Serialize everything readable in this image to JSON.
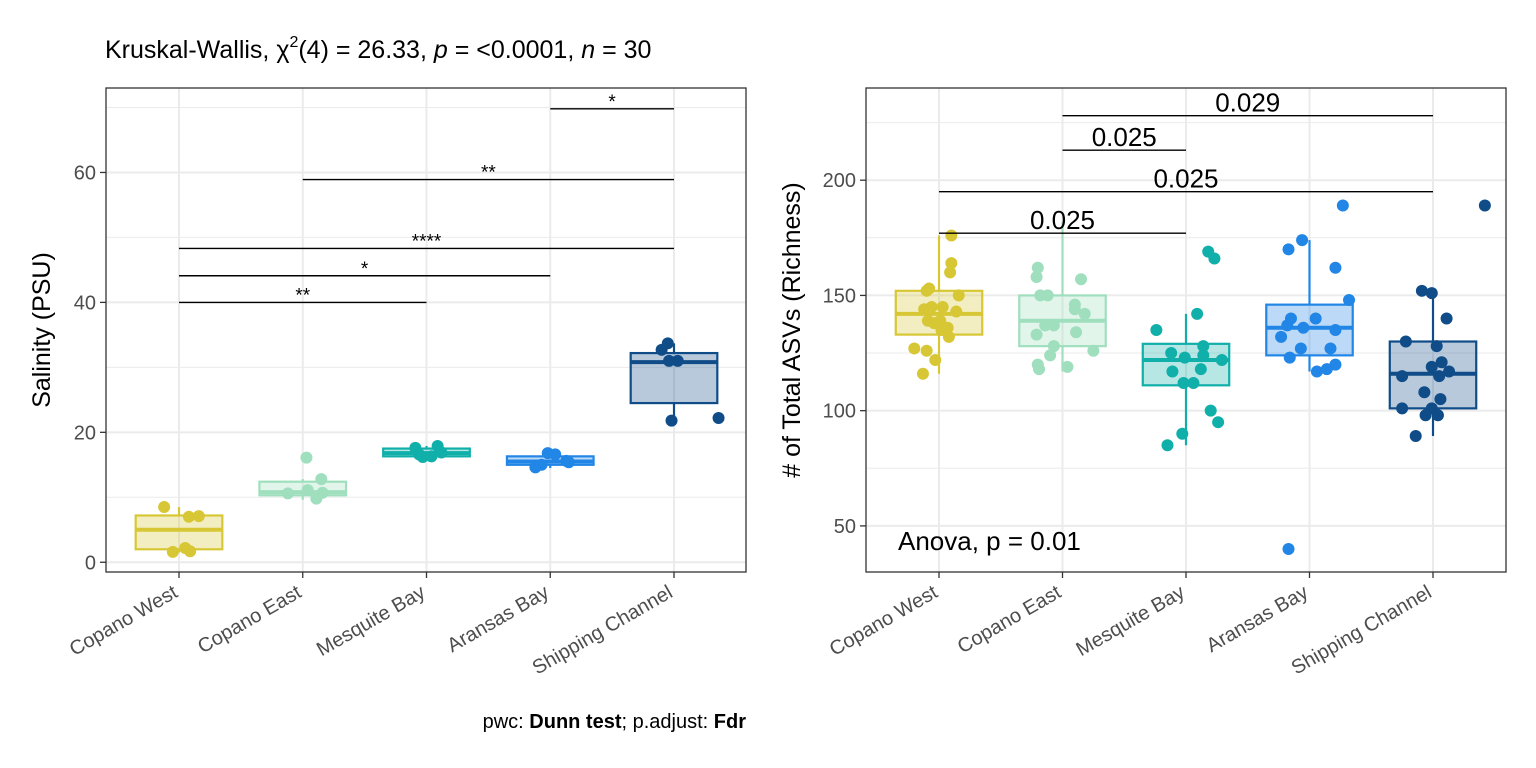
{
  "groups": [
    "Copano West",
    "Copano East",
    "Mesquite Bay",
    "Aransas Bay",
    "Shipping Channel"
  ],
  "colors": {
    "Copano West": "#D7C735",
    "Copano East": "#9FDFBE",
    "Mesquite Bay": "#11AFA9",
    "Aransas Bay": "#2186E6",
    "Shipping Channel": "#0F4C88"
  },
  "chart_data": [
    {
      "type": "box",
      "title_parts": {
        "prefix": "Kruskal-Wallis, ",
        "chi": "χ",
        "sup": "2",
        "df": "(4) = 26.33, ",
        "p_sym": "p",
        "p_val": " = <0.0001, ",
        "n_sym": "n",
        "n_val": " = 30"
      },
      "xlabel": "",
      "ylabel": "Salinity (PSU)",
      "ylim": [
        -1.5,
        73
      ],
      "yticks": [
        0,
        20,
        40,
        60
      ],
      "ytick_labels": [
        "0",
        "20",
        "40",
        "60"
      ],
      "grid": true,
      "caption_parts": {
        "a": "pwc: ",
        "b": "Dunn test",
        "c": "; p.adjust: ",
        "d": "Fdr"
      },
      "boxes": [
        {
          "group": "Copano West",
          "q1": 2.0,
          "median": 5.0,
          "q3": 7.2,
          "whisker_low": 1.5,
          "whisker_high": 8.5
        },
        {
          "group": "Copano East",
          "q1": 10.3,
          "median": 10.8,
          "q3": 12.4,
          "whisker_low": 9.6,
          "whisker_high": 12.8
        },
        {
          "group": "Mesquite Bay",
          "q1": 16.3,
          "median": 16.8,
          "q3": 17.5,
          "whisker_low": 16.2,
          "whisker_high": 17.9
        },
        {
          "group": "Aransas Bay",
          "q1": 15.0,
          "median": 15.5,
          "q3": 16.3,
          "whisker_low": 14.5,
          "whisker_high": 17.0
        },
        {
          "group": "Shipping Channel",
          "q1": 24.5,
          "median": 30.8,
          "q3": 32.2,
          "whisker_low": 21.8,
          "whisker_high": 33.7
        }
      ],
      "points": [
        {
          "group": "Copano West",
          "offset": -0.12,
          "y": 8.5
        },
        {
          "group": "Copano West",
          "offset": 0.08,
          "y": 7.0
        },
        {
          "group": "Copano West",
          "offset": 0.16,
          "y": 7.1
        },
        {
          "group": "Copano West",
          "offset": 0.05,
          "y": 2.2
        },
        {
          "group": "Copano West",
          "offset": -0.05,
          "y": 1.6
        },
        {
          "group": "Copano West",
          "offset": 0.09,
          "y": 1.7
        },
        {
          "group": "Copano East",
          "offset": 0.03,
          "y": 16.1
        },
        {
          "group": "Copano East",
          "offset": -0.12,
          "y": 10.6
        },
        {
          "group": "Copano East",
          "offset": 0.15,
          "y": 12.8
        },
        {
          "group": "Copano East",
          "offset": 0.04,
          "y": 11.1
        },
        {
          "group": "Copano East",
          "offset": 0.11,
          "y": 9.8
        },
        {
          "group": "Copano East",
          "offset": 0.16,
          "y": 10.7
        },
        {
          "group": "Mesquite Bay",
          "offset": -0.09,
          "y": 17.6
        },
        {
          "group": "Mesquite Bay",
          "offset": 0.09,
          "y": 17.9
        },
        {
          "group": "Mesquite Bay",
          "offset": 0.04,
          "y": 16.3
        },
        {
          "group": "Mesquite Bay",
          "offset": -0.03,
          "y": 16.2
        },
        {
          "group": "Mesquite Bay",
          "offset": 0.12,
          "y": 16.9
        },
        {
          "group": "Mesquite Bay",
          "offset": -0.06,
          "y": 16.6
        },
        {
          "group": "Aransas Bay",
          "offset": -0.02,
          "y": 16.8
        },
        {
          "group": "Aransas Bay",
          "offset": 0.04,
          "y": 16.6
        },
        {
          "group": "Aransas Bay",
          "offset": -0.12,
          "y": 14.6
        },
        {
          "group": "Aransas Bay",
          "offset": -0.07,
          "y": 15.0
        },
        {
          "group": "Aransas Bay",
          "offset": 0.13,
          "y": 15.6
        },
        {
          "group": "Aransas Bay",
          "offset": 0.15,
          "y": 15.4
        },
        {
          "group": "Shipping Channel",
          "offset": -0.1,
          "y": 32.7
        },
        {
          "group": "Shipping Channel",
          "offset": -0.05,
          "y": 33.7
        },
        {
          "group": "Shipping Channel",
          "offset": 0.03,
          "y": 31.0
        },
        {
          "group": "Shipping Channel",
          "offset": -0.04,
          "y": 31.0
        },
        {
          "group": "Shipping Channel",
          "offset": -0.02,
          "y": 21.8
        },
        {
          "group": "Shipping Channel",
          "offset": 0.36,
          "y": 22.2
        }
      ],
      "brackets": [
        {
          "from": "Aransas Bay",
          "to": "Shipping Channel",
          "y": 69.8,
          "label": "*"
        },
        {
          "from": "Copano East",
          "to": "Shipping Channel",
          "y": 58.9,
          "label": "**"
        },
        {
          "from": "Copano West",
          "to": "Shipping Channel",
          "y": 48.3,
          "label": "****"
        },
        {
          "from": "Copano West",
          "to": "Aransas Bay",
          "y": 44.1,
          "label": "*"
        },
        {
          "from": "Copano West",
          "to": "Mesquite Bay",
          "y": 40.0,
          "label": "**"
        }
      ]
    },
    {
      "type": "box",
      "title": "",
      "xlabel": "",
      "ylabel": "# of Total ASVs (Richness)",
      "ylim": [
        30,
        240
      ],
      "yticks": [
        50,
        100,
        150,
        200
      ],
      "ytick_labels": [
        "50",
        "100",
        "150",
        "200"
      ],
      "grid": true,
      "annotation": "Anova, p = 0.01",
      "boxes": [
        {
          "group": "Copano West",
          "q1": 133,
          "median": 142,
          "q3": 152,
          "whisker_low": 116,
          "whisker_high": 176
        },
        {
          "group": "Copano East",
          "q1": 128,
          "median": 139,
          "q3": 150,
          "whisker_low": 117,
          "whisker_high": 182
        },
        {
          "group": "Mesquite Bay",
          "q1": 111,
          "median": 122,
          "q3": 129,
          "whisker_low": 85,
          "whisker_high": 142
        },
        {
          "group": "Aransas Bay",
          "q1": 124,
          "median": 136,
          "q3": 146,
          "whisker_low": 117,
          "whisker_high": 174
        },
        {
          "group": "Shipping Channel",
          "q1": 101,
          "median": 116,
          "q3": 130,
          "whisker_low": 89,
          "whisker_high": 151
        }
      ],
      "points": [
        {
          "group": "Copano West",
          "offset": 0.1,
          "y": 176
        },
        {
          "group": "Copano West",
          "offset": 0.1,
          "y": 164
        },
        {
          "group": "Copano West",
          "offset": 0.09,
          "y": 160
        },
        {
          "group": "Copano West",
          "offset": -0.1,
          "y": 152
        },
        {
          "group": "Copano West",
          "offset": -0.08,
          "y": 153
        },
        {
          "group": "Copano West",
          "offset": 0.16,
          "y": 150
        },
        {
          "group": "Copano West",
          "offset": -0.06,
          "y": 145
        },
        {
          "group": "Copano West",
          "offset": 0.03,
          "y": 145
        },
        {
          "group": "Copano West",
          "offset": -0.12,
          "y": 144
        },
        {
          "group": "Copano West",
          "offset": 0.14,
          "y": 143
        },
        {
          "group": "Copano West",
          "offset": -0.09,
          "y": 139
        },
        {
          "group": "Copano West",
          "offset": -0.04,
          "y": 138
        },
        {
          "group": "Copano West",
          "offset": 0.01,
          "y": 139
        },
        {
          "group": "Copano West",
          "offset": 0.07,
          "y": 136
        },
        {
          "group": "Copano West",
          "offset": 0.02,
          "y": 135
        },
        {
          "group": "Copano West",
          "offset": 0.08,
          "y": 132
        },
        {
          "group": "Copano West",
          "offset": -0.2,
          "y": 127
        },
        {
          "group": "Copano West",
          "offset": -0.1,
          "y": 126
        },
        {
          "group": "Copano West",
          "offset": -0.03,
          "y": 122
        },
        {
          "group": "Copano West",
          "offset": -0.13,
          "y": 116
        },
        {
          "group": "Copano East",
          "offset": -0.2,
          "y": 162
        },
        {
          "group": "Copano East",
          "offset": -0.21,
          "y": 158
        },
        {
          "group": "Copano East",
          "offset": 0.15,
          "y": 157
        },
        {
          "group": "Copano East",
          "offset": -0.18,
          "y": 150
        },
        {
          "group": "Copano East",
          "offset": -0.12,
          "y": 150
        },
        {
          "group": "Copano East",
          "offset": 0.1,
          "y": 146
        },
        {
          "group": "Copano East",
          "offset": 0.1,
          "y": 144
        },
        {
          "group": "Copano East",
          "offset": 0.18,
          "y": 142
        },
        {
          "group": "Copano East",
          "offset": -0.14,
          "y": 137
        },
        {
          "group": "Copano East",
          "offset": -0.07,
          "y": 137
        },
        {
          "group": "Copano East",
          "offset": 0.11,
          "y": 134
        },
        {
          "group": "Copano East",
          "offset": -0.21,
          "y": 133
        },
        {
          "group": "Copano East",
          "offset": -0.07,
          "y": 128
        },
        {
          "group": "Copano East",
          "offset": 0.25,
          "y": 126
        },
        {
          "group": "Copano East",
          "offset": -0.1,
          "y": 124
        },
        {
          "group": "Copano East",
          "offset": -0.2,
          "y": 120
        },
        {
          "group": "Copano East",
          "offset": -0.19,
          "y": 118
        },
        {
          "group": "Copano East",
          "offset": 0.04,
          "y": 119
        },
        {
          "group": "Mesquite Bay",
          "offset": 0.18,
          "y": 169
        },
        {
          "group": "Mesquite Bay",
          "offset": 0.23,
          "y": 166
        },
        {
          "group": "Mesquite Bay",
          "offset": 0.09,
          "y": 142
        },
        {
          "group": "Mesquite Bay",
          "offset": -0.24,
          "y": 135
        },
        {
          "group": "Mesquite Bay",
          "offset": 0.14,
          "y": 128
        },
        {
          "group": "Mesquite Bay",
          "offset": -0.12,
          "y": 125
        },
        {
          "group": "Mesquite Bay",
          "offset": 0.14,
          "y": 124
        },
        {
          "group": "Mesquite Bay",
          "offset": 0.29,
          "y": 122
        },
        {
          "group": "Mesquite Bay",
          "offset": -0.01,
          "y": 123
        },
        {
          "group": "Mesquite Bay",
          "offset": 0.12,
          "y": 118
        },
        {
          "group": "Mesquite Bay",
          "offset": -0.11,
          "y": 117
        },
        {
          "group": "Mesquite Bay",
          "offset": -0.02,
          "y": 112
        },
        {
          "group": "Mesquite Bay",
          "offset": 0.06,
          "y": 112
        },
        {
          "group": "Mesquite Bay",
          "offset": 0.2,
          "y": 100
        },
        {
          "group": "Mesquite Bay",
          "offset": 0.26,
          "y": 95
        },
        {
          "group": "Mesquite Bay",
          "offset": -0.03,
          "y": 90
        },
        {
          "group": "Mesquite Bay",
          "offset": -0.15,
          "y": 85
        },
        {
          "group": "Aransas Bay",
          "offset": 0.27,
          "y": 189
        },
        {
          "group": "Aransas Bay",
          "offset": -0.06,
          "y": 174
        },
        {
          "group": "Aransas Bay",
          "offset": -0.17,
          "y": 170
        },
        {
          "group": "Aransas Bay",
          "offset": 0.21,
          "y": 162
        },
        {
          "group": "Aransas Bay",
          "offset": 0.32,
          "y": 148
        },
        {
          "group": "Aransas Bay",
          "offset": -0.15,
          "y": 140
        },
        {
          "group": "Aransas Bay",
          "offset": 0.05,
          "y": 140
        },
        {
          "group": "Aransas Bay",
          "offset": -0.18,
          "y": 137
        },
        {
          "group": "Aransas Bay",
          "offset": -0.05,
          "y": 136
        },
        {
          "group": "Aransas Bay",
          "offset": 0.21,
          "y": 135
        },
        {
          "group": "Aransas Bay",
          "offset": -0.23,
          "y": 132
        },
        {
          "group": "Aransas Bay",
          "offset": 0.17,
          "y": 127
        },
        {
          "group": "Aransas Bay",
          "offset": -0.07,
          "y": 127
        },
        {
          "group": "Aransas Bay",
          "offset": -0.16,
          "y": 123
        },
        {
          "group": "Aransas Bay",
          "offset": 0.21,
          "y": 120
        },
        {
          "group": "Aransas Bay",
          "offset": 0.06,
          "y": 117
        },
        {
          "group": "Aransas Bay",
          "offset": 0.14,
          "y": 118
        },
        {
          "group": "Aransas Bay",
          "offset": -0.17,
          "y": 40
        },
        {
          "group": "Shipping Channel",
          "offset": 0.42,
          "y": 189
        },
        {
          "group": "Shipping Channel",
          "offset": -0.09,
          "y": 152
        },
        {
          "group": "Shipping Channel",
          "offset": -0.01,
          "y": 151
        },
        {
          "group": "Shipping Channel",
          "offset": 0.11,
          "y": 140
        },
        {
          "group": "Shipping Channel",
          "offset": -0.22,
          "y": 130
        },
        {
          "group": "Shipping Channel",
          "offset": 0.03,
          "y": 128
        },
        {
          "group": "Shipping Channel",
          "offset": 0.07,
          "y": 121
        },
        {
          "group": "Shipping Channel",
          "offset": -0.01,
          "y": 119
        },
        {
          "group": "Shipping Channel",
          "offset": 0.13,
          "y": 117
        },
        {
          "group": "Shipping Channel",
          "offset": -0.25,
          "y": 115
        },
        {
          "group": "Shipping Channel",
          "offset": 0.05,
          "y": 115
        },
        {
          "group": "Shipping Channel",
          "offset": -0.07,
          "y": 108
        },
        {
          "group": "Shipping Channel",
          "offset": 0.06,
          "y": 105
        },
        {
          "group": "Shipping Channel",
          "offset": -0.25,
          "y": 101
        },
        {
          "group": "Shipping Channel",
          "offset": -0.01,
          "y": 101
        },
        {
          "group": "Shipping Channel",
          "offset": -0.06,
          "y": 98
        },
        {
          "group": "Shipping Channel",
          "offset": 0.04,
          "y": 98
        },
        {
          "group": "Shipping Channel",
          "offset": -0.14,
          "y": 89
        }
      ],
      "brackets": [
        {
          "from": "Copano East",
          "to": "Shipping Channel",
          "y": 228,
          "label": "0.029"
        },
        {
          "from": "Copano East",
          "to": "Mesquite Bay",
          "y": 213,
          "label": "0.025"
        },
        {
          "from": "Copano West",
          "to": "Shipping Channel",
          "y": 195,
          "label": "0.025"
        },
        {
          "from": "Copano West",
          "to": "Mesquite Bay",
          "y": 177,
          "label": "0.025"
        }
      ]
    }
  ]
}
